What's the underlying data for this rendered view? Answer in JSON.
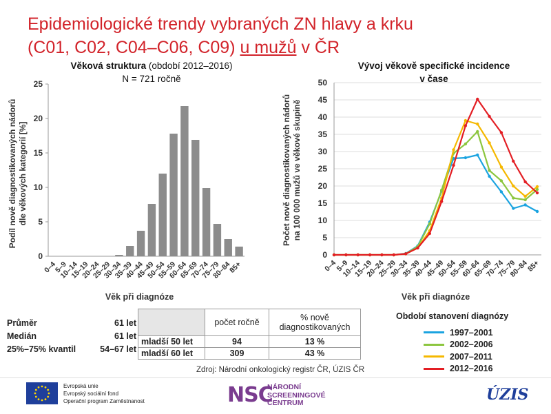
{
  "title": {
    "part1": "Epidemiologické trendy vybraných ZN hlavy a krku",
    "part2": "(C01, C02, C04–C06, C09)",
    "underlined": "u mužů",
    "part3": "v ČR"
  },
  "left_subtitle": {
    "bold": "Věková struktura",
    "rest": " (období 2012–2016)"
  },
  "left_n": "N = 721 ročně",
  "right_subtitle_line1": "Vývoj věkově specifické incidence",
  "right_subtitle_line2": "v čase",
  "stats": [
    {
      "label": "Průměr",
      "value": "61 let"
    },
    {
      "label": "Medián",
      "value": "61 let"
    },
    {
      "label": "25%–75% kvantil",
      "value": "54–67 let"
    }
  ],
  "table": {
    "header_count": "počet ročně",
    "header_pct": "% nově diagnostikovaných",
    "rows": [
      {
        "label": "mladší 50 let",
        "count": "94",
        "pct": "13 %"
      },
      {
        "label": "mladší 60 let",
        "count": "309",
        "pct": "43 %"
      }
    ]
  },
  "legend_title": "Období stanovení diagnózy",
  "source": "Zdroj: Národní onkologický registr ČR, ÚZIS ČR",
  "footer": {
    "eu_lines": [
      "Evropská unie",
      "Evropský sociální fond",
      "Operační program Zaměstnanost"
    ],
    "nsc_mark": "NSC",
    "nsc_lines": [
      "NÁRODNÍ",
      "SCREENINGOVÉ",
      "CENTRUM"
    ],
    "uzis": "ÚZIS"
  },
  "colors": {
    "title": "#d2232a",
    "bar": "#8c8c8c",
    "series": [
      "#1aa3e0",
      "#8cc63f",
      "#f5b800",
      "#e31e24"
    ]
  },
  "chart_data": [
    {
      "type": "bar",
      "title": "Věková struktura (období 2012–2016)",
      "subtitle": "N = 721 ročně",
      "xlabel": "Věk při diagnóze",
      "ylabel": "Podíl nově diagnostikovaných nádorů dle věkových kategorií [%]",
      "ylim": [
        0,
        25
      ],
      "yticks": [
        0,
        5,
        10,
        15,
        20,
        25
      ],
      "categories": [
        "0–4",
        "5–9",
        "10–14",
        "15–19",
        "20–24",
        "25–29",
        "30–34",
        "35–39",
        "40–44",
        "45–49",
        "50–54",
        "55–59",
        "60–64",
        "65–69",
        "70–74",
        "75–79",
        "80–84",
        "85+"
      ],
      "values": [
        0,
        0,
        0,
        0,
        0,
        0,
        0.2,
        1.5,
        3.7,
        7.6,
        12.0,
        17.8,
        21.8,
        16.9,
        9.9,
        4.7,
        2.5,
        1.4
      ]
    },
    {
      "type": "line",
      "title": "Vývoj věkově specifické incidence v čase",
      "xlabel": "Věk při diagnóze",
      "ylabel": "Počet nově diagnostikovaných nádorů na 100 000 mužů ve věkové skupině",
      "ylim": [
        0,
        50
      ],
      "yticks": [
        0,
        5,
        10,
        15,
        20,
        25,
        30,
        35,
        40,
        45,
        50
      ],
      "categories": [
        "0–4",
        "5–9",
        "10–14",
        "15–19",
        "20–24",
        "25–29",
        "30–34",
        "35–39",
        "40–44",
        "45–49",
        "50–54",
        "55–59",
        "60–64",
        "65–69",
        "70–74",
        "75–79",
        "80–84",
        "85+"
      ],
      "legend_title": "Období stanovení diagnózy",
      "series": [
        {
          "name": "1997–2001",
          "values": [
            0,
            0,
            0,
            0,
            0,
            0,
            0.4,
            2.6,
            9.5,
            18.5,
            28.0,
            28.2,
            29.0,
            22.8,
            18.3,
            13.5,
            14.5,
            12.6
          ]
        },
        {
          "name": "2002–2006",
          "values": [
            0,
            0,
            0,
            0,
            0,
            0,
            0.3,
            2.4,
            9.0,
            18.8,
            29.5,
            32.2,
            35.8,
            24.5,
            21.5,
            16.5,
            16.0,
            19.0
          ]
        },
        {
          "name": "2007–2011",
          "values": [
            0,
            0,
            0,
            0,
            0,
            0,
            0.3,
            2.0,
            7.0,
            16.5,
            30.5,
            39.0,
            38.0,
            32.5,
            25.5,
            20.0,
            17.0,
            19.8
          ]
        },
        {
          "name": "2012–2016",
          "values": [
            0,
            0,
            0,
            0,
            0,
            0,
            0.3,
            2.0,
            6.2,
            15.5,
            26.0,
            37.5,
            45.2,
            40.2,
            35.5,
            27.2,
            21.2,
            18.0
          ]
        }
      ]
    }
  ]
}
